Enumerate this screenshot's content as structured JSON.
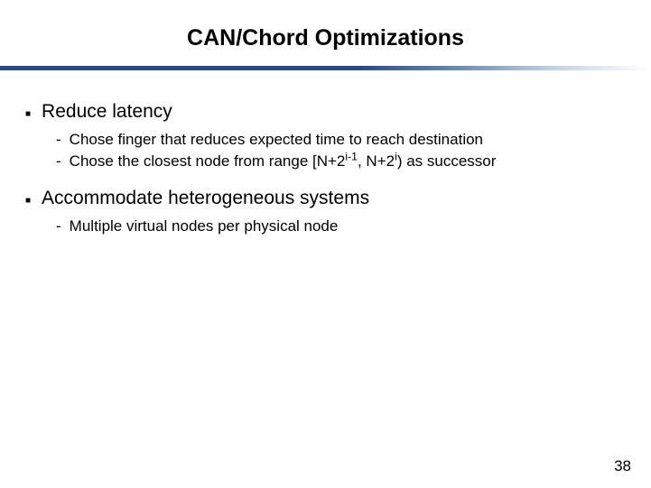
{
  "title": "CAN/Chord Optimizations",
  "bullets": {
    "b1": {
      "text": "Reduce latency",
      "sub1": "Chose finger that reduces expected time to reach destination",
      "sub2_prefix": "Chose the closest node from range [N+2",
      "sub2_sup1": "i-1",
      "sub2_mid": ", N+2",
      "sub2_sup2": "i",
      "sub2_suffix": ") as successor"
    },
    "b2": {
      "text": "Accommodate heterogeneous systems",
      "sub1": "Multiple virtual nodes per physical node"
    }
  },
  "page_number": "38",
  "colors": {
    "divider_dark": "#2b4a7a",
    "divider_mid": "#6a8ab0",
    "divider_light": "#c5d2e2",
    "background": "#ffffff",
    "text": "#000000"
  }
}
